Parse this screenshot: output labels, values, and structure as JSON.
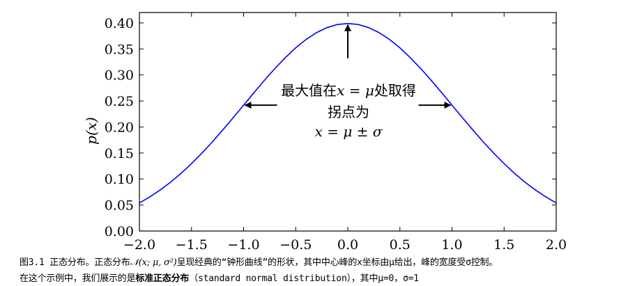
{
  "chart_data": {
    "type": "line",
    "title": "",
    "xlabel": "",
    "ylabel": "p(x)",
    "xlim": [
      -2.0,
      2.0
    ],
    "ylim": [
      0.0,
      0.42
    ],
    "xticks": [
      "−2.0",
      "−1.5",
      "−1.0",
      "−0.5",
      "0.0",
      "0.5",
      "1.0",
      "1.5",
      "2.0"
    ],
    "xtick_values": [
      -2.0,
      -1.5,
      -1.0,
      -0.5,
      0.0,
      0.5,
      1.0,
      1.5,
      2.0
    ],
    "yticks": [
      "0.00",
      "0.05",
      "0.10",
      "0.15",
      "0.20",
      "0.25",
      "0.30",
      "0.35",
      "0.40"
    ],
    "ytick_values": [
      0.0,
      0.05,
      0.1,
      0.15,
      0.2,
      0.25,
      0.3,
      0.35,
      0.4
    ],
    "grid": false,
    "series": [
      {
        "color": "#0000ff",
        "x": [
          -2.0,
          -1.9,
          -1.8,
          -1.7,
          -1.6,
          -1.5,
          -1.4,
          -1.3,
          -1.2,
          -1.1,
          -1.0,
          -0.9,
          -0.8,
          -0.7,
          -0.6,
          -0.5,
          -0.4,
          -0.3,
          -0.2,
          -0.1,
          0.0,
          0.1,
          0.2,
          0.3,
          0.4,
          0.5,
          0.6,
          0.7,
          0.8,
          0.9,
          1.0,
          1.1,
          1.2,
          1.3,
          1.4,
          1.5,
          1.6,
          1.7,
          1.8,
          1.9,
          2.0
        ],
        "y": [
          0.054,
          0.0656,
          0.079,
          0.094,
          0.1109,
          0.1295,
          0.1497,
          0.1714,
          0.1942,
          0.2179,
          0.242,
          0.2661,
          0.2897,
          0.3123,
          0.3332,
          0.3521,
          0.3683,
          0.3814,
          0.391,
          0.397,
          0.3989,
          0.397,
          0.391,
          0.3814,
          0.3683,
          0.3521,
          0.3332,
          0.3123,
          0.2897,
          0.2661,
          0.242,
          0.2179,
          0.1942,
          0.1714,
          0.1497,
          0.1295,
          0.1109,
          0.094,
          0.079,
          0.0656,
          0.054
        ]
      }
    ],
    "annotations": {
      "peak_text_pre": "最大值在",
      "peak_text_math": "x = μ",
      "peak_text_post": "处取得",
      "inflection_text": "拐点为",
      "inflection_math": "x = μ ± σ",
      "peak_arrow_target": [
        0.0,
        0.3989
      ],
      "left_arrow_target": [
        -1.0,
        0.242
      ],
      "right_arrow_target": [
        1.0,
        0.242
      ]
    }
  },
  "caption": {
    "line1_pre": "图3.1  正态分布。正态分布",
    "line1_math": "𝒩(x; μ, σ²)",
    "line1_post": "呈现经典的“钟形曲线”的形状，其中中心峰的x坐标由μ给出，峰的宽度受σ控制。",
    "line2_pre": "在这个示例中，我们展示的是",
    "line2_bold": "标准正态分布",
    "line2_post": "（standard normal distribution），其中μ=0，σ=1"
  }
}
